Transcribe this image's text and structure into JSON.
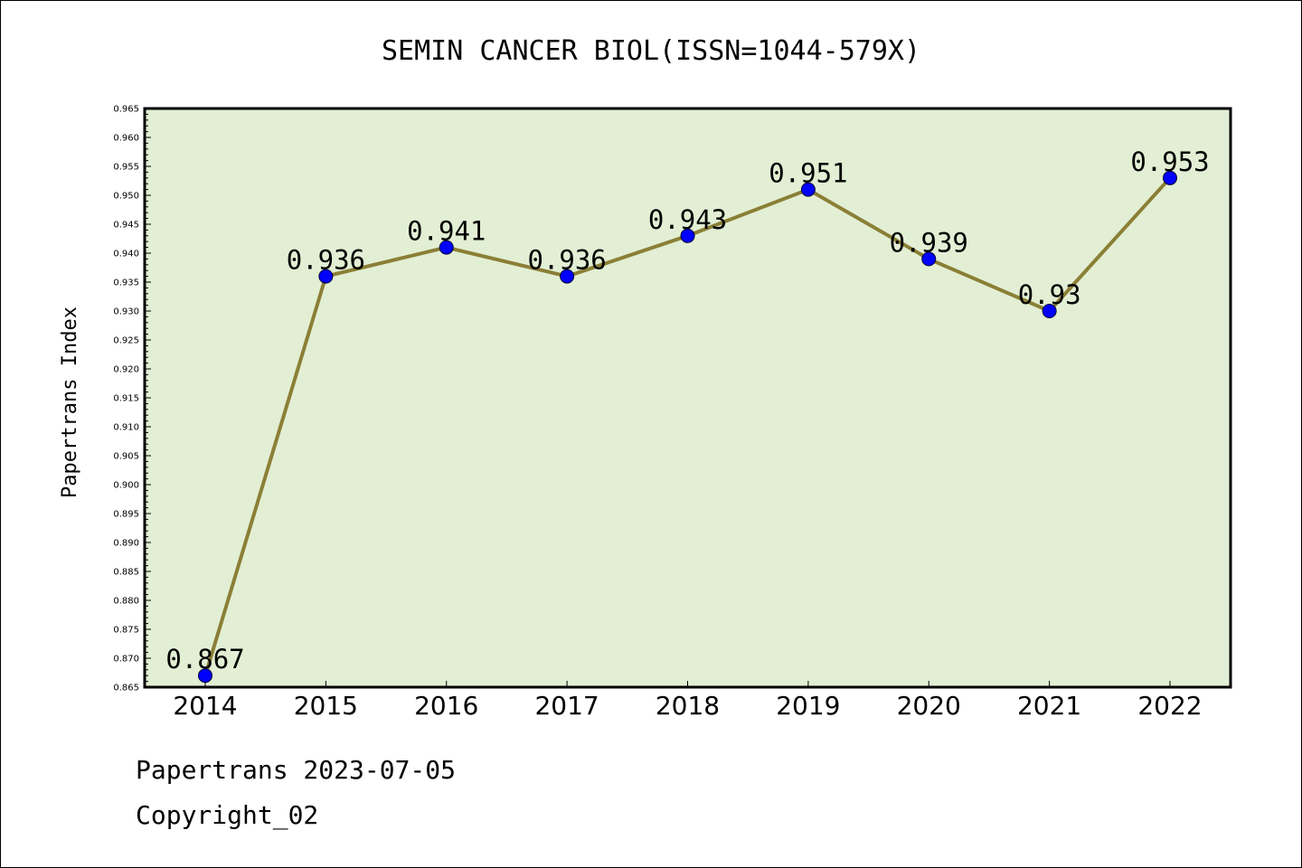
{
  "footer": {
    "line1": "Papertrans 2023-07-05",
    "line2": "Copyright_02"
  },
  "colors": {
    "plot_background": "#e2efd4",
    "line": "#8b7f36",
    "marker": "#0000ff"
  },
  "chart_data": {
    "type": "line",
    "title": "SEMIN CANCER BIOL(ISSN=1044-579X)",
    "xlabel": "",
    "ylabel": "Papertrans Index",
    "categories": [
      "2014",
      "2015",
      "2016",
      "2017",
      "2018",
      "2019",
      "2020",
      "2021",
      "2022"
    ],
    "values": [
      0.867,
      0.936,
      0.941,
      0.936,
      0.943,
      0.951,
      0.939,
      0.93,
      0.953
    ],
    "data_labels": [
      "0.867",
      "0.936",
      "0.941",
      "0.936",
      "0.943",
      "0.951",
      "0.939",
      "0.93",
      "0.953"
    ],
    "ylim": [
      0.865,
      0.965
    ],
    "yticks": [
      "0.865",
      "0.870",
      "0.875",
      "0.880",
      "0.885",
      "0.890",
      "0.895",
      "0.900",
      "0.905",
      "0.910",
      "0.915",
      "0.920",
      "0.925",
      "0.930",
      "0.935",
      "0.940",
      "0.945",
      "0.950",
      "0.955",
      "0.960",
      "0.965"
    ],
    "grid": false,
    "legend": "none"
  }
}
